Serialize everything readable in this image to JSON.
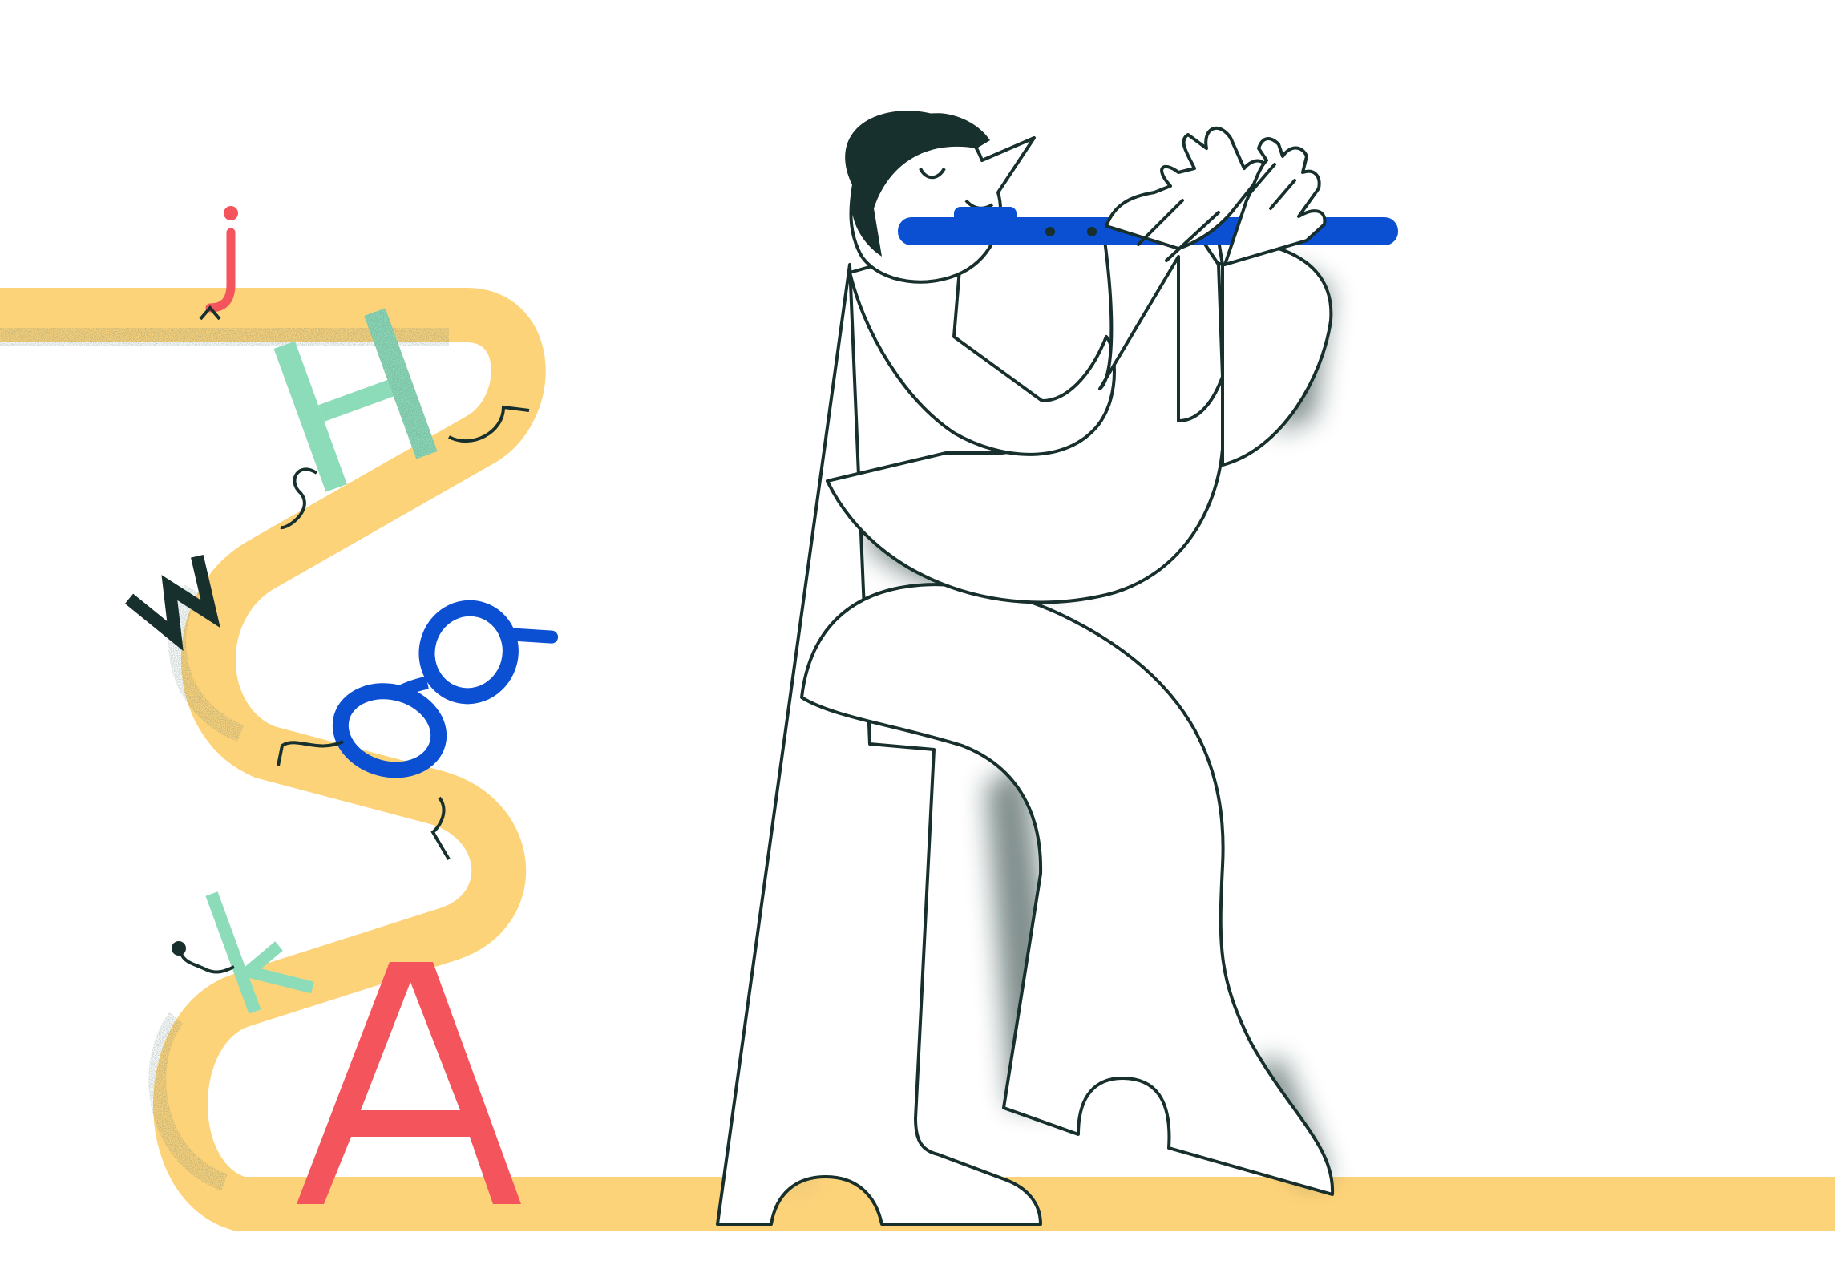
{
  "illustration": {
    "letters": {
      "j": "j",
      "h": "H",
      "w": "w",
      "g": "g",
      "k": "k",
      "a": "A"
    }
  },
  "colors": {
    "background": "#ffffff",
    "path": "#fdd37a",
    "outline": "#17302d",
    "flute": "#0b4fd3",
    "red": "#f4545c",
    "mint": "#8ddcb9",
    "blue": "#0b4fd3",
    "ink": "#17302d",
    "figure_fill": "#ffffff"
  },
  "icons": {
    "musician": "flute-player-letter-r",
    "flute": "flute-icon",
    "path": "winding-road"
  }
}
